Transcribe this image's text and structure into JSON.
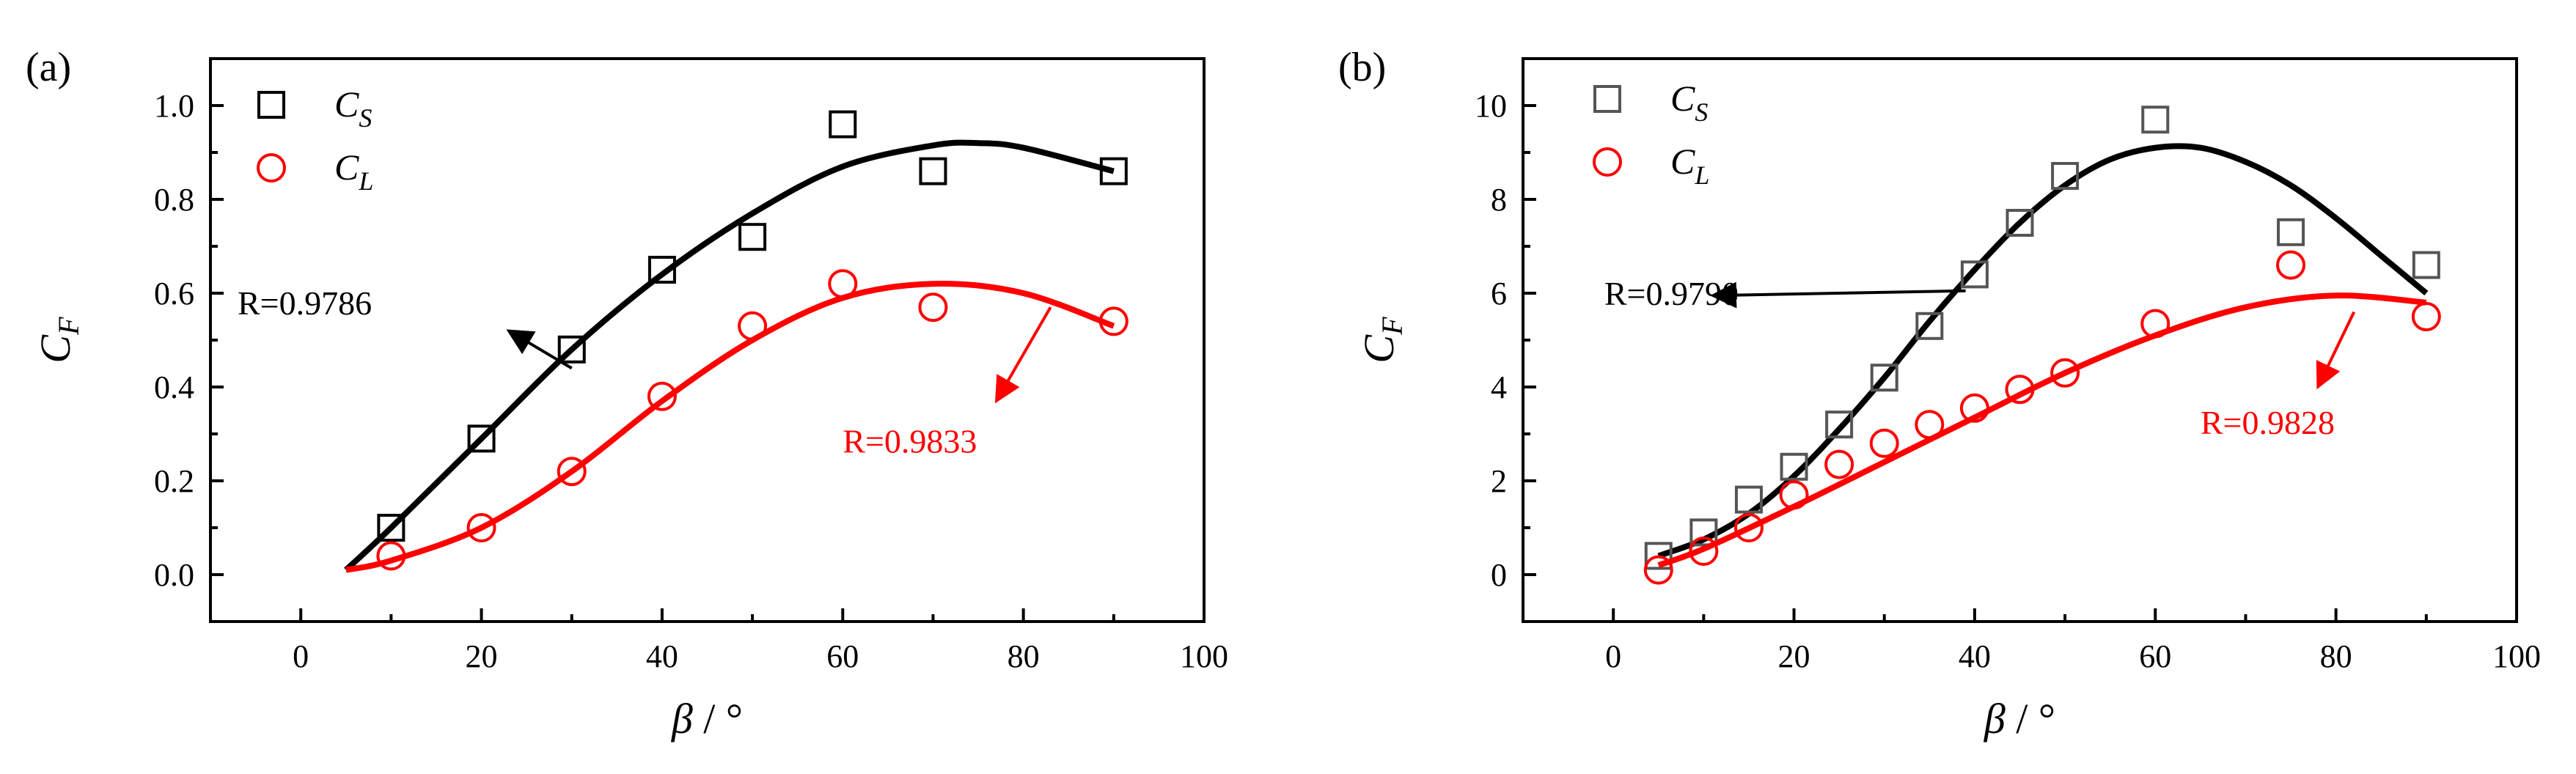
{
  "chart_data": [
    {
      "type": "scatter",
      "panel_label": "(a)",
      "xlabel": "β / °",
      "ylabel": "C_F",
      "xlim": [
        -10,
        100
      ],
      "ylim": [
        -0.1,
        1.1
      ],
      "xticks": [
        0,
        20,
        40,
        60,
        80,
        100
      ],
      "yticks": [
        0.0,
        0.2,
        0.4,
        0.6,
        0.8,
        1.0
      ],
      "ytick_format": "0.0",
      "grid": false,
      "legend_position": "top-left",
      "series": [
        {
          "name": "C_S",
          "legend": {
            "main": "C",
            "sub": "S"
          },
          "marker": "square",
          "color": "#000000",
          "points": [
            [
              10,
              0.1
            ],
            [
              20,
              0.29
            ],
            [
              30,
              0.48
            ],
            [
              40,
              0.65
            ],
            [
              50,
              0.72
            ],
            [
              60,
              0.96
            ],
            [
              70,
              0.86
            ],
            [
              90,
              0.86
            ]
          ],
          "fit": [
            [
              5,
              0.01
            ],
            [
              10,
              0.1
            ],
            [
              20,
              0.29
            ],
            [
              30,
              0.48
            ],
            [
              40,
              0.64
            ],
            [
              50,
              0.77
            ],
            [
              60,
              0.87
            ],
            [
              70,
              0.915
            ],
            [
              75,
              0.92
            ],
            [
              80,
              0.91
            ],
            [
              90,
              0.86
            ]
          ]
        },
        {
          "name": "C_L",
          "legend": {
            "main": "C",
            "sub": "L"
          },
          "marker": "circle",
          "color": "#ff0000",
          "points": [
            [
              10,
              0.04
            ],
            [
              20,
              0.1
            ],
            [
              30,
              0.22
            ],
            [
              40,
              0.38
            ],
            [
              50,
              0.53
            ],
            [
              60,
              0.62
            ],
            [
              70,
              0.57
            ],
            [
              90,
              0.54
            ]
          ],
          "fit": [
            [
              5,
              0.01
            ],
            [
              10,
              0.03
            ],
            [
              20,
              0.1
            ],
            [
              30,
              0.22
            ],
            [
              40,
              0.37
            ],
            [
              50,
              0.5
            ],
            [
              60,
              0.59
            ],
            [
              70,
              0.62
            ],
            [
              80,
              0.6
            ],
            [
              90,
              0.53
            ]
          ]
        }
      ],
      "annotations": [
        {
          "text": "R=0.9786",
          "color": "#000000",
          "label_at": [
            -7,
            0.555
          ],
          "arrow_from": [
            30,
            0.44
          ],
          "arrow_to": [
            23,
            0.52
          ]
        },
        {
          "text": "R=0.9833",
          "color": "#ff0000",
          "label_at": [
            60,
            0.26
          ],
          "arrow_from": [
            83,
            0.57
          ],
          "arrow_to": [
            77,
            0.37
          ]
        }
      ]
    },
    {
      "type": "scatter",
      "panel_label": "(b)",
      "xlabel": "β / °",
      "ylabel": "C_F",
      "xlim": [
        -10,
        100
      ],
      "ylim": [
        -1,
        11
      ],
      "xticks": [
        0,
        20,
        40,
        60,
        80,
        100
      ],
      "yticks": [
        0,
        2,
        4,
        6,
        8,
        10
      ],
      "ytick_format": "0",
      "grid": false,
      "legend_position": "top-left",
      "series": [
        {
          "name": "C_S",
          "legend": {
            "main": "C",
            "sub": "S"
          },
          "marker": "square",
          "color": "#555555",
          "points": [
            [
              5,
              0.4
            ],
            [
              10,
              0.9
            ],
            [
              15,
              1.6
            ],
            [
              20,
              2.3
            ],
            [
              25,
              3.2
            ],
            [
              30,
              4.2
            ],
            [
              35,
              5.3
            ],
            [
              40,
              6.4
            ],
            [
              45,
              7.5
            ],
            [
              50,
              8.5
            ],
            [
              60,
              9.7
            ],
            [
              75,
              7.3
            ],
            [
              90,
              6.6
            ]
          ],
          "fit": [
            [
              5,
              0.4
            ],
            [
              10,
              0.75
            ],
            [
              15,
              1.3
            ],
            [
              20,
              2.1
            ],
            [
              25,
              3.1
            ],
            [
              30,
              4.2
            ],
            [
              35,
              5.4
            ],
            [
              40,
              6.5
            ],
            [
              45,
              7.5
            ],
            [
              50,
              8.3
            ],
            [
              55,
              8.85
            ],
            [
              60,
              9.1
            ],
            [
              65,
              9.1
            ],
            [
              70,
              8.8
            ],
            [
              75,
              8.3
            ],
            [
              80,
              7.6
            ],
            [
              85,
              6.8
            ],
            [
              90,
              6.0
            ]
          ]
        },
        {
          "name": "C_L",
          "legend": {
            "main": "C",
            "sub": "L"
          },
          "marker": "circle",
          "color": "#ff0000",
          "points": [
            [
              5,
              0.1
            ],
            [
              10,
              0.5
            ],
            [
              15,
              1.0
            ],
            [
              20,
              1.7
            ],
            [
              25,
              2.35
            ],
            [
              30,
              2.8
            ],
            [
              35,
              3.2
            ],
            [
              40,
              3.55
            ],
            [
              45,
              3.95
            ],
            [
              50,
              4.3
            ],
            [
              60,
              5.35
            ],
            [
              75,
              6.6
            ],
            [
              90,
              5.5
            ]
          ],
          "fit": [
            [
              5,
              0.2
            ],
            [
              10,
              0.55
            ],
            [
              20,
              1.45
            ],
            [
              30,
              2.4
            ],
            [
              40,
              3.35
            ],
            [
              50,
              4.3
            ],
            [
              60,
              5.1
            ],
            [
              70,
              5.7
            ],
            [
              80,
              5.95
            ],
            [
              90,
              5.8
            ]
          ]
        }
      ],
      "annotations": [
        {
          "text": "R=0.9790",
          "color": "#000000",
          "label_at": [
            -1,
            5.75
          ],
          "arrow_from": [
            39,
            6.05
          ],
          "arrow_to": [
            11,
            5.95
          ]
        },
        {
          "text": "R=0.9828",
          "color": "#ff0000",
          "label_at": [
            65,
            3.0
          ],
          "arrow_from": [
            82,
            5.6
          ],
          "arrow_to": [
            78,
            4.0
          ]
        }
      ]
    }
  ]
}
